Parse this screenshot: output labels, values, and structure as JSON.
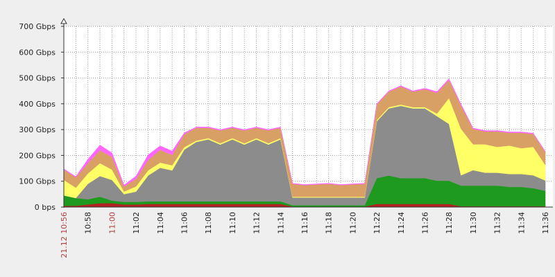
{
  "chart_data": {
    "type": "stacked_area",
    "categories": [
      "21.12 10:56",
      null,
      "10:58",
      null,
      "11:00",
      null,
      "11:02",
      null,
      "11:04",
      null,
      "11:06",
      null,
      "11:08",
      null,
      "11:10",
      null,
      "11:12",
      null,
      "11:14",
      null,
      "11:16",
      null,
      "11:18",
      null,
      "11:20",
      null,
      "11:22",
      null,
      "11:24",
      null,
      "11:26",
      null,
      "11:28",
      null,
      "11:30",
      null,
      "11:32",
      null,
      "11:34",
      null,
      "11:36"
    ],
    "highlighted_categories": [
      0,
      4
    ],
    "highlight_color": "#b0413e",
    "series": [
      {
        "color": "#b22222",
        "values": [
          5,
          5,
          10,
          15,
          15,
          10,
          10,
          12,
          12,
          12,
          12,
          12,
          12,
          12,
          12,
          12,
          12,
          12,
          12,
          2,
          2,
          2,
          2,
          2,
          2,
          2,
          12,
          12,
          12,
          12,
          12,
          12,
          12,
          3,
          3,
          3,
          3,
          3,
          3,
          3,
          3
        ]
      },
      {
        "color": "#1e9a1e",
        "values": [
          40,
          30,
          20,
          25,
          10,
          10,
          10,
          10,
          10,
          10,
          10,
          10,
          10,
          10,
          10,
          10,
          10,
          10,
          10,
          5,
          5,
          5,
          5,
          5,
          5,
          5,
          100,
          110,
          100,
          100,
          100,
          90,
          90,
          80,
          80,
          80,
          80,
          75,
          75,
          70,
          60
        ]
      },
      {
        "color": "#8c8c8c",
        "values": [
          0,
          0,
          60,
          80,
          80,
          30,
          40,
          100,
          130,
          120,
          200,
          230,
          240,
          220,
          240,
          220,
          240,
          220,
          240,
          30,
          30,
          30,
          30,
          30,
          30,
          30,
          220,
          260,
          280,
          270,
          270,
          250,
          220,
          40,
          60,
          50,
          50,
          50,
          50,
          50,
          40
        ]
      },
      {
        "color": "#ffff66",
        "values": [
          60,
          40,
          40,
          50,
          40,
          10,
          20,
          20,
          20,
          20,
          10,
          5,
          5,
          5,
          5,
          5,
          5,
          5,
          5,
          3,
          3,
          3,
          3,
          3,
          3,
          3,
          5,
          5,
          5,
          5,
          5,
          10,
          100,
          180,
          100,
          110,
          100,
          110,
          100,
          110,
          60
        ]
      },
      {
        "color": "#d9a066",
        "values": [
          40,
          40,
          40,
          50,
          50,
          20,
          30,
          40,
          50,
          40,
          50,
          50,
          40,
          50,
          40,
          50,
          40,
          50,
          40,
          50,
          45,
          48,
          50,
          45,
          48,
          50,
          60,
          60,
          70,
          60,
          70,
          80,
          70,
          90,
          60,
          50,
          60,
          50,
          60,
          50,
          50
        ]
      },
      {
        "color": "#ff66ff",
        "values": [
          3,
          3,
          15,
          20,
          15,
          5,
          10,
          20,
          15,
          15,
          5,
          3,
          3,
          3,
          3,
          3,
          3,
          3,
          3,
          2,
          2,
          2,
          2,
          2,
          2,
          2,
          3,
          3,
          3,
          3,
          3,
          5,
          5,
          5,
          3,
          3,
          3,
          3,
          3,
          3,
          3
        ]
      }
    ],
    "ylim": [
      0,
      700
    ],
    "yticks": [
      {
        "value": 0,
        "label": "0 bps"
      },
      {
        "value": 100,
        "label": "100 Gbps"
      },
      {
        "value": 200,
        "label": "200 Gbps"
      },
      {
        "value": 300,
        "label": "300 Gbps"
      },
      {
        "value": 400,
        "label": "400 Gbps"
      },
      {
        "value": 500,
        "label": "500 Gbps"
      },
      {
        "value": 600,
        "label": "600 Gbps"
      },
      {
        "value": 700,
        "label": "700 Gbps"
      }
    ],
    "grid": true
  }
}
